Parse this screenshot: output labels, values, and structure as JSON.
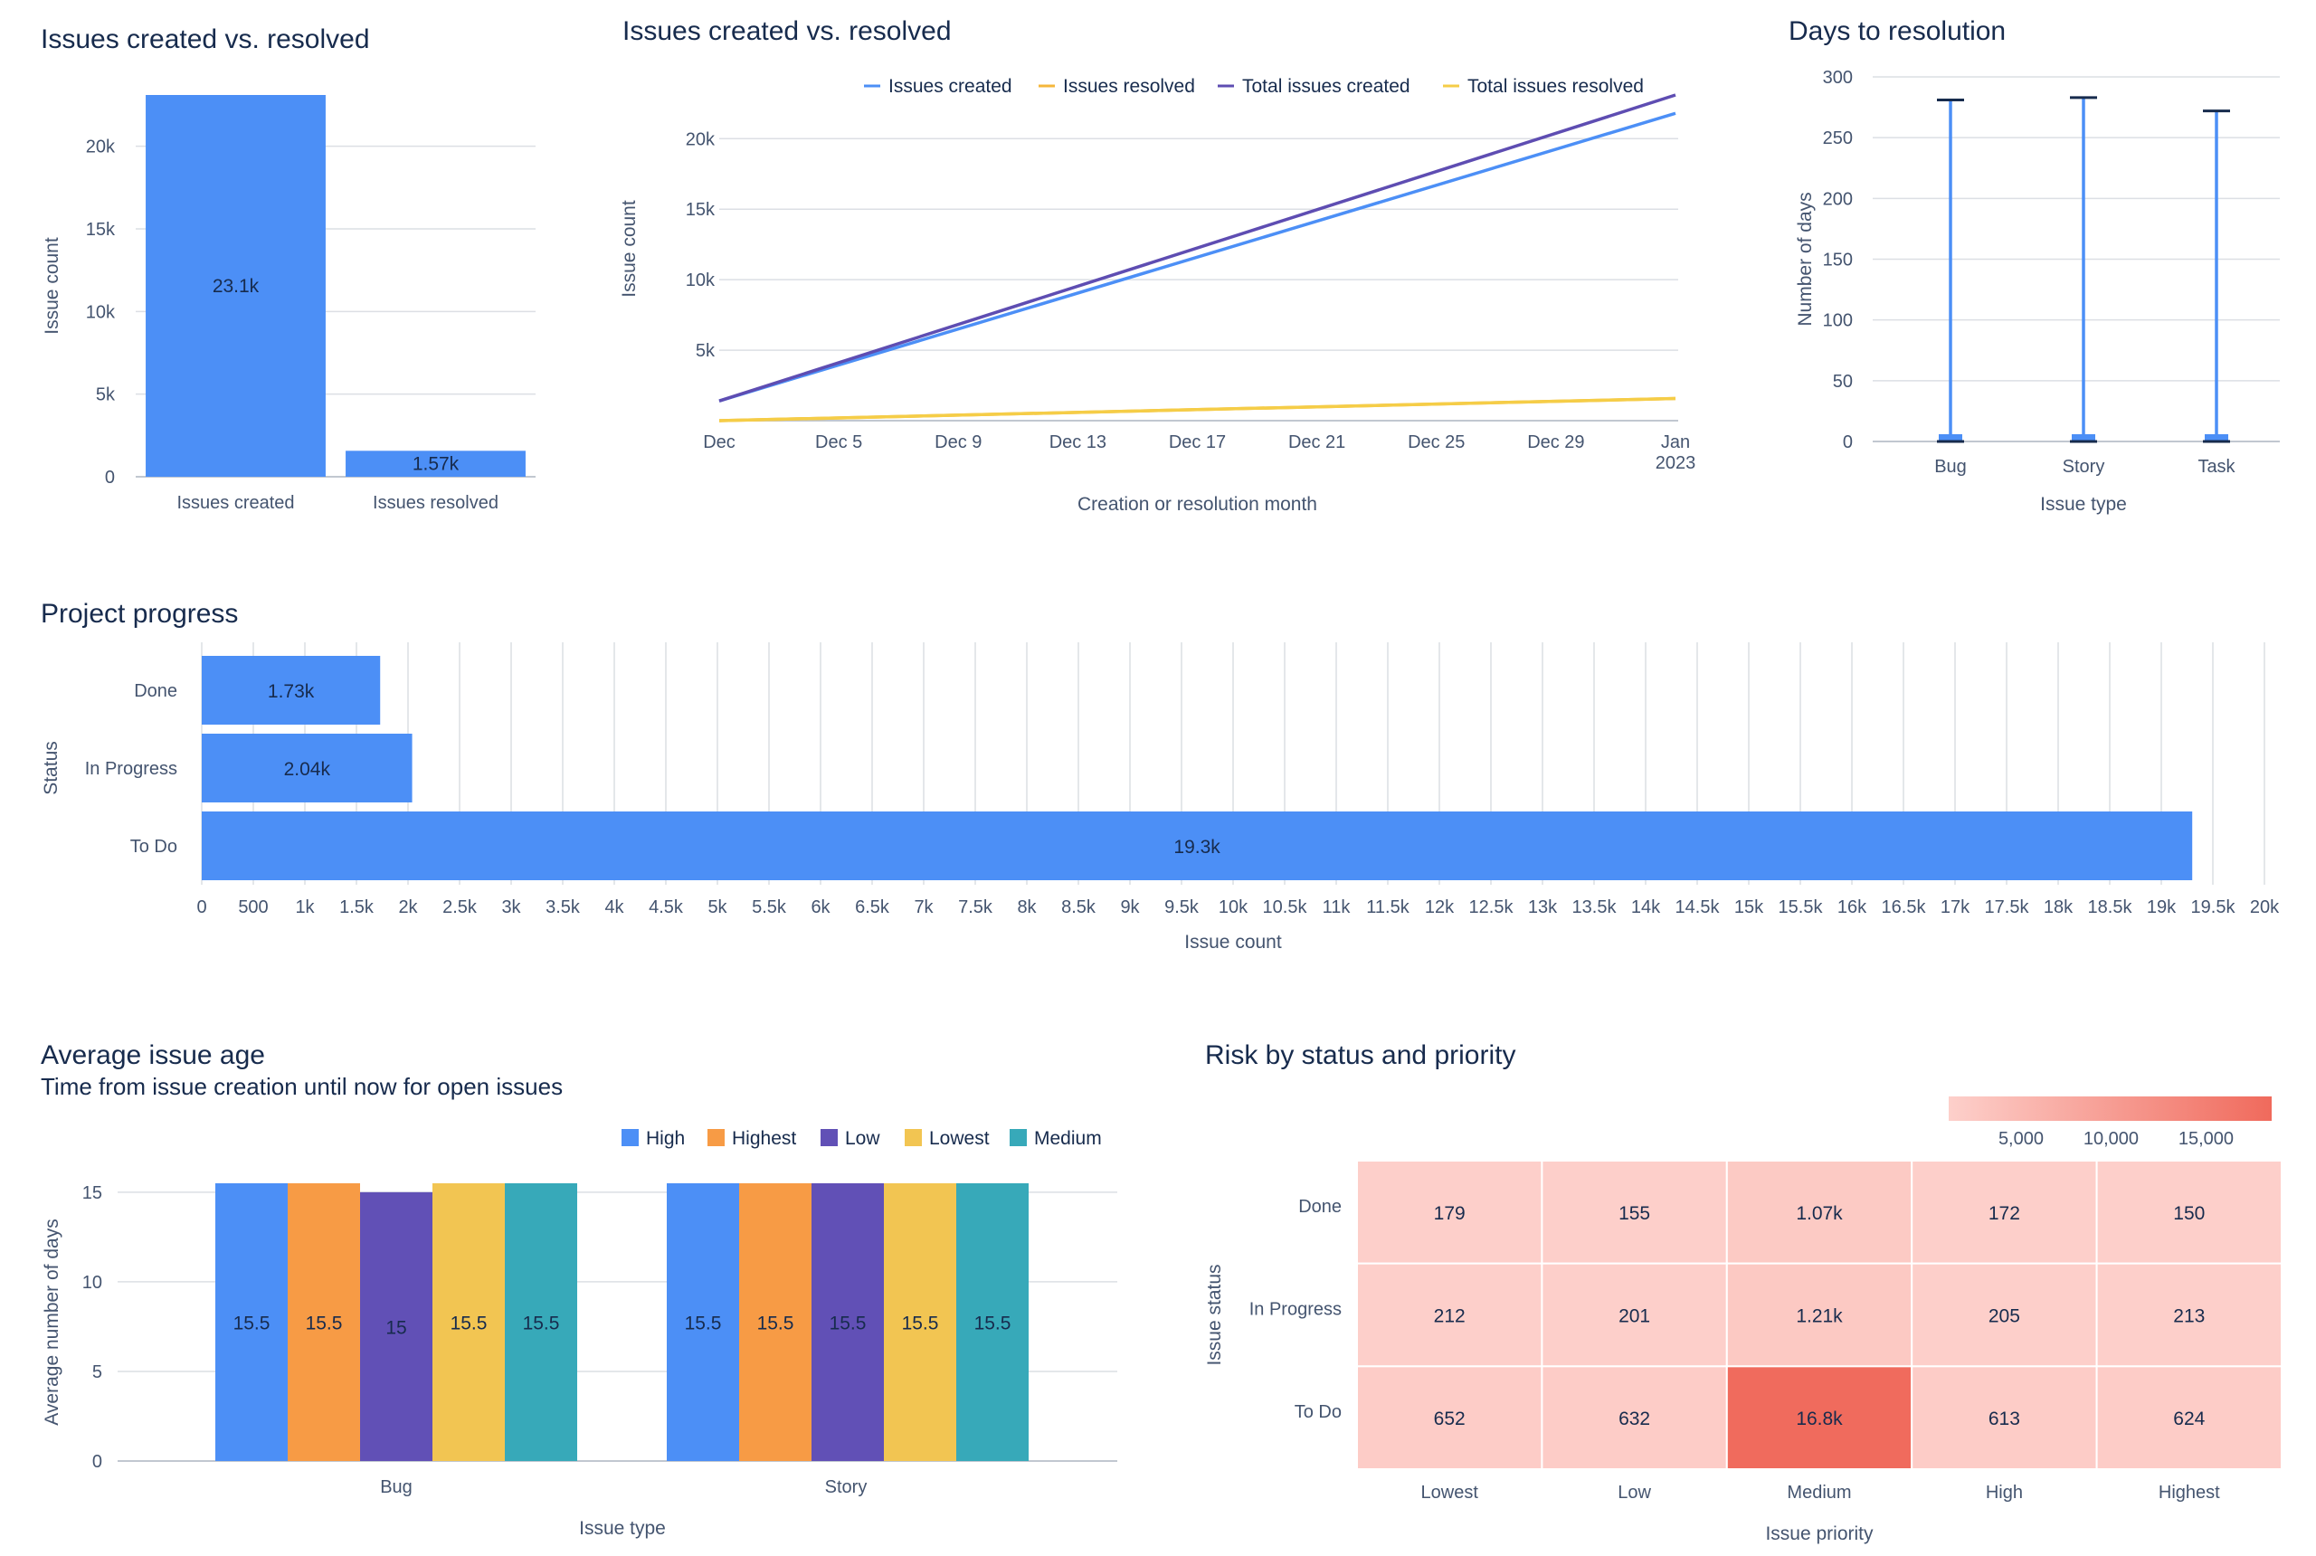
{
  "chart_data": [
    {
      "id": "c1",
      "type": "bar",
      "title": "Issues created vs. resolved",
      "categories": [
        "Issues created",
        "Issues resolved"
      ],
      "values": [
        23100,
        1570
      ],
      "data_labels": [
        "23.1k",
        "1.57k"
      ],
      "ylabel": "Issue count",
      "yticks": [
        0,
        5000,
        10000,
        15000,
        20000
      ],
      "ytick_labels": [
        "0",
        "5k",
        "10k",
        "15k",
        "20k"
      ],
      "ylim": [
        0,
        23100
      ],
      "color": "#4c8ff6",
      "grid": true
    },
    {
      "id": "c2",
      "type": "line",
      "title": "Issues created vs. resolved",
      "xlabel": "Creation or resolution month",
      "ylabel": "Issue count",
      "x": [
        "Dec 1",
        "Jan 2023"
      ],
      "xticks": [
        "Dec",
        "Dec 5",
        "Dec 9",
        "Dec 13",
        "Dec 17",
        "Dec 21",
        "Dec 25",
        "Dec 29",
        "Jan|2023"
      ],
      "yticks": [
        5000,
        10000,
        15000,
        20000
      ],
      "ytick_labels": [
        "5k",
        "10k",
        "15k",
        "20k"
      ],
      "ylim": [
        0,
        23100
      ],
      "legend_position": "top",
      "series": [
        {
          "name": "Issues created",
          "color": "#4c8ff6",
          "values": [
            1400,
            21800
          ]
        },
        {
          "name": "Issues resolved",
          "color": "#f5b73b",
          "values": [
            0,
            1570
          ]
        },
        {
          "name": "Total issues created",
          "color": "#5e4db2",
          "values": [
            1400,
            23100
          ]
        },
        {
          "name": "Total issues resolved",
          "color": "#f5cd47",
          "values": [
            0,
            1570
          ]
        }
      ],
      "grid": true
    },
    {
      "id": "c3",
      "type": "box",
      "title": "Days to resolution",
      "xlabel": "Issue type",
      "ylabel": "Number of days",
      "categories": [
        "Bug",
        "Story",
        "Task"
      ],
      "min": [
        0,
        0,
        0
      ],
      "q1": [
        0,
        0,
        0
      ],
      "q3": [
        6,
        6,
        6
      ],
      "max": [
        281,
        283,
        272
      ],
      "yticks": [
        0,
        50,
        100,
        150,
        200,
        250,
        300
      ],
      "ylim": [
        0,
        300
      ],
      "color": "#4c8ff6",
      "grid": true
    },
    {
      "id": "c4",
      "type": "bar",
      "orientation": "horizontal",
      "title": "Project progress",
      "xlabel": "Issue count",
      "ylabel": "Status",
      "categories": [
        "Done",
        "In Progress",
        "To Do"
      ],
      "values": [
        1730,
        2040,
        19300
      ],
      "data_labels": [
        "1.73k",
        "2.04k",
        "19.3k"
      ],
      "xticks": [
        0,
        500,
        1000,
        1500,
        2000,
        2500,
        3000,
        3500,
        4000,
        4500,
        5000,
        5500,
        6000,
        6500,
        7000,
        7500,
        8000,
        8500,
        9000,
        9500,
        10000,
        10500,
        11000,
        11500,
        12000,
        12500,
        13000,
        13500,
        14000,
        14500,
        15000,
        15500,
        16000,
        16500,
        17000,
        17500,
        18000,
        18500,
        19000,
        19500,
        20000
      ],
      "xtick_labels": [
        "0",
        "500",
        "1k",
        "1.5k",
        "2k",
        "2.5k",
        "3k",
        "3.5k",
        "4k",
        "4.5k",
        "5k",
        "5.5k",
        "6k",
        "6.5k",
        "7k",
        "7.5k",
        "8k",
        "8.5k",
        "9k",
        "9.5k",
        "10k",
        "10.5k",
        "11k",
        "11.5k",
        "12k",
        "12.5k",
        "13k",
        "13.5k",
        "14k",
        "14.5k",
        "15k",
        "15.5k",
        "16k",
        "16.5k",
        "17k",
        "17.5k",
        "18k",
        "18.5k",
        "19k",
        "19.5k",
        "20k"
      ],
      "xlim": [
        0,
        20000
      ],
      "color": "#4c8ff6",
      "grid": true
    },
    {
      "id": "c5",
      "type": "bar",
      "title": "Average issue age",
      "subtitle": "Time from issue creation until now for open issues",
      "xlabel": "Issue type",
      "ylabel": "Average number of days",
      "categories": [
        "Bug",
        "Story"
      ],
      "series": [
        {
          "name": "High",
          "color": "#4c8ff6",
          "values": [
            15.5,
            15.5
          ]
        },
        {
          "name": "Highest",
          "color": "#f79b45",
          "values": [
            15.5,
            15.5
          ]
        },
        {
          "name": "Low",
          "color": "#6150b6",
          "values": [
            15,
            15.5
          ]
        },
        {
          "name": "Lowest",
          "color": "#f2c552",
          "values": [
            15.5,
            15.5
          ]
        },
        {
          "name": "Medium",
          "color": "#37a9b9",
          "values": [
            15.5,
            15.5
          ]
        }
      ],
      "data_labels": [
        [
          "15.5",
          "15.5",
          "15",
          "15.5",
          "15.5"
        ],
        [
          "15.5",
          "15.5",
          "15.5",
          "15.5",
          "15.5"
        ]
      ],
      "yticks": [
        0,
        5,
        10,
        15
      ],
      "ylim": [
        0,
        15.5
      ],
      "legend_position": "top-right",
      "grid": true
    },
    {
      "id": "c6",
      "type": "heatmap",
      "title": "Risk by status and priority",
      "xlabel": "Issue priority",
      "ylabel": "Issue status",
      "x": [
        "Lowest",
        "Low",
        "Medium",
        "High",
        "Highest"
      ],
      "y": [
        "Done",
        "In Progress",
        "To Do"
      ],
      "values": [
        [
          179,
          155,
          1070,
          172,
          150
        ],
        [
          212,
          201,
          1210,
          205,
          213
        ],
        [
          652,
          632,
          16800,
          613,
          624
        ]
      ],
      "data_labels": [
        [
          "179",
          "155",
          "1.07k",
          "172",
          "150"
        ],
        [
          "212",
          "201",
          "1.21k",
          "205",
          "213"
        ],
        [
          "652",
          "632",
          "16.8k",
          "613",
          "624"
        ]
      ],
      "scale_ticks": [
        5000,
        10000,
        15000
      ],
      "scale_tick_labels": [
        "5,000",
        "10,000",
        "15,000"
      ],
      "color_low": "#fdd0cb",
      "color_high": "#f06a5c",
      "legend_position": "top-right"
    }
  ]
}
